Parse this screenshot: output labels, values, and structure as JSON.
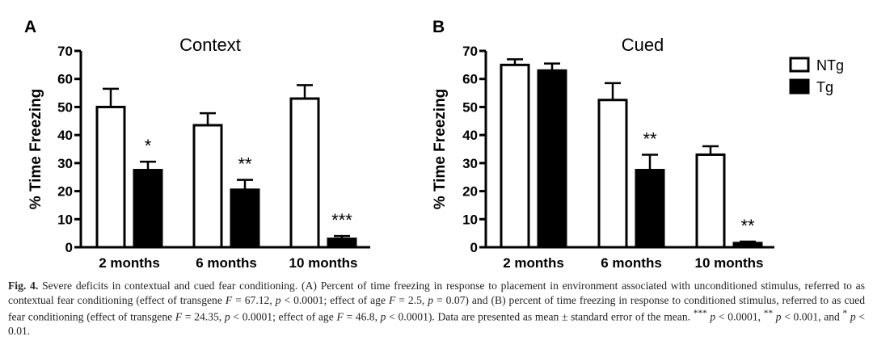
{
  "chart_data": [
    {
      "panel_letter": "A",
      "type": "bar",
      "title": "Context",
      "ylabel": "% Time Freezing",
      "ylim": [
        0,
        70
      ],
      "yticks": [
        0,
        10,
        20,
        30,
        40,
        50,
        60,
        70
      ],
      "categories": [
        "2 months",
        "6 months",
        "10 months"
      ],
      "series": [
        {
          "name": "NTg",
          "fill": "#ffffff",
          "values": [
            50,
            43.5,
            53
          ],
          "errors": [
            6.5,
            4.3,
            4.8
          ]
        },
        {
          "name": "Tg",
          "fill": "#000000",
          "values": [
            27.5,
            20.5,
            3
          ],
          "errors": [
            3,
            3.5,
            1
          ]
        }
      ],
      "annotations": [
        "*",
        "**",
        "***"
      ]
    },
    {
      "panel_letter": "B",
      "type": "bar",
      "title": "Cued",
      "ylabel": "% Time Freezing",
      "ylim": [
        0,
        70
      ],
      "yticks": [
        0,
        10,
        20,
        30,
        40,
        50,
        60,
        70
      ],
      "categories": [
        "2 months",
        "6 months",
        "10 months"
      ],
      "series": [
        {
          "name": "NTg",
          "fill": "#ffffff",
          "values": [
            65,
            52.5,
            33
          ],
          "errors": [
            2,
            6,
            3
          ]
        },
        {
          "name": "Tg",
          "fill": "#000000",
          "values": [
            63,
            27.5,
            1.5
          ],
          "errors": [
            2.5,
            5.5,
            0.5
          ]
        }
      ],
      "annotations": [
        "",
        "**",
        "**"
      ]
    }
  ],
  "legend": [
    {
      "label": "NTg",
      "fill": "#ffffff"
    },
    {
      "label": "Tg",
      "fill": "#000000"
    }
  ],
  "caption": {
    "label": "Fig. 4.",
    "title": "Severe deficits in contextual and cued fear conditioning.",
    "text_1": "(A) Percent of time freezing in response to placement in environment associated with unconditioned stimulus, referred to as contextual fear conditioning (effect of transgene",
    "stat_1": "= 67.12,",
    "p_1": "< 0.0001; effect of age",
    "stat_2": "= 2.5,",
    "p_2": "= 0.07) and (B) percent of time freezing in response to conditioned stimulus, referred to as cued fear conditioning (effect of transgene",
    "stat_3": "= 24.35,",
    "p_3": "< 0.0001; effect of age",
    "stat_4": "= 46.8,",
    "p_4": "< 0.0001). Data are presented as mean ± standard error of the mean.",
    "sig_3": "***",
    "sig_text_3": "< 0.0001,",
    "sig_2": "**",
    "sig_text_2": "< 0.001, and",
    "sig_1": "*",
    "sig_text_1": "< 0.01.",
    "var_F": "F",
    "var_p": "p"
  }
}
